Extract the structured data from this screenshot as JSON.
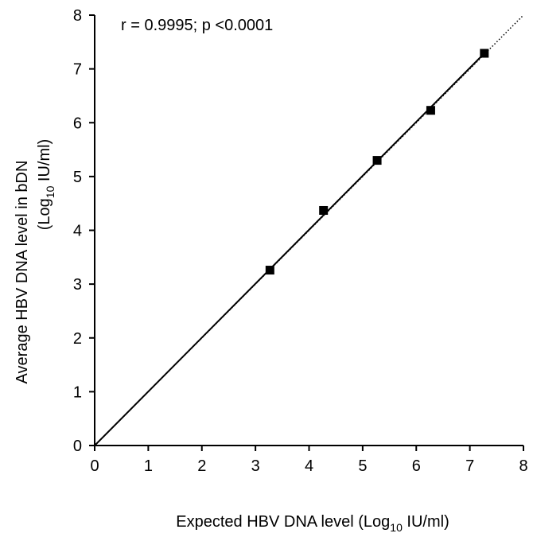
{
  "chart_data": {
    "type": "scatter",
    "annotation": "r = 0.9995; p <0.0001",
    "xlabel": {
      "text_before": "Expected HBV DNA level  (Log",
      "subscript": "10",
      "text_after": " IU/ml)"
    },
    "ylabel": {
      "line1": "Average  HBV DNA level in bDN",
      "line2_before": "(Log",
      "line2_subscript": "10",
      "line2_after": " IU/ml)"
    },
    "xlim": [
      0,
      8
    ],
    "ylim": [
      0,
      8
    ],
    "x_ticks": [
      "0",
      "1",
      "2",
      "3",
      "4",
      "5",
      "6",
      "7",
      "8"
    ],
    "y_ticks": [
      "0",
      "1",
      "2",
      "3",
      "4",
      "5",
      "6",
      "7",
      "8"
    ],
    "series": [
      {
        "points": [
          {
            "x": 3.27,
            "y": 3.26
          },
          {
            "x": 4.27,
            "y": 4.37
          },
          {
            "x": 5.27,
            "y": 5.3
          },
          {
            "x": 6.27,
            "y": 6.23
          },
          {
            "x": 7.27,
            "y": 7.29
          }
        ],
        "marker": "square",
        "color": "#000000"
      }
    ],
    "fit_line": {
      "from": [
        0,
        0
      ],
      "to": [
        7.27,
        7.29
      ],
      "style": "solid"
    },
    "identity_line": {
      "from": [
        0,
        0
      ],
      "to": [
        8,
        8
      ],
      "style": "dotted"
    },
    "grid": false
  }
}
